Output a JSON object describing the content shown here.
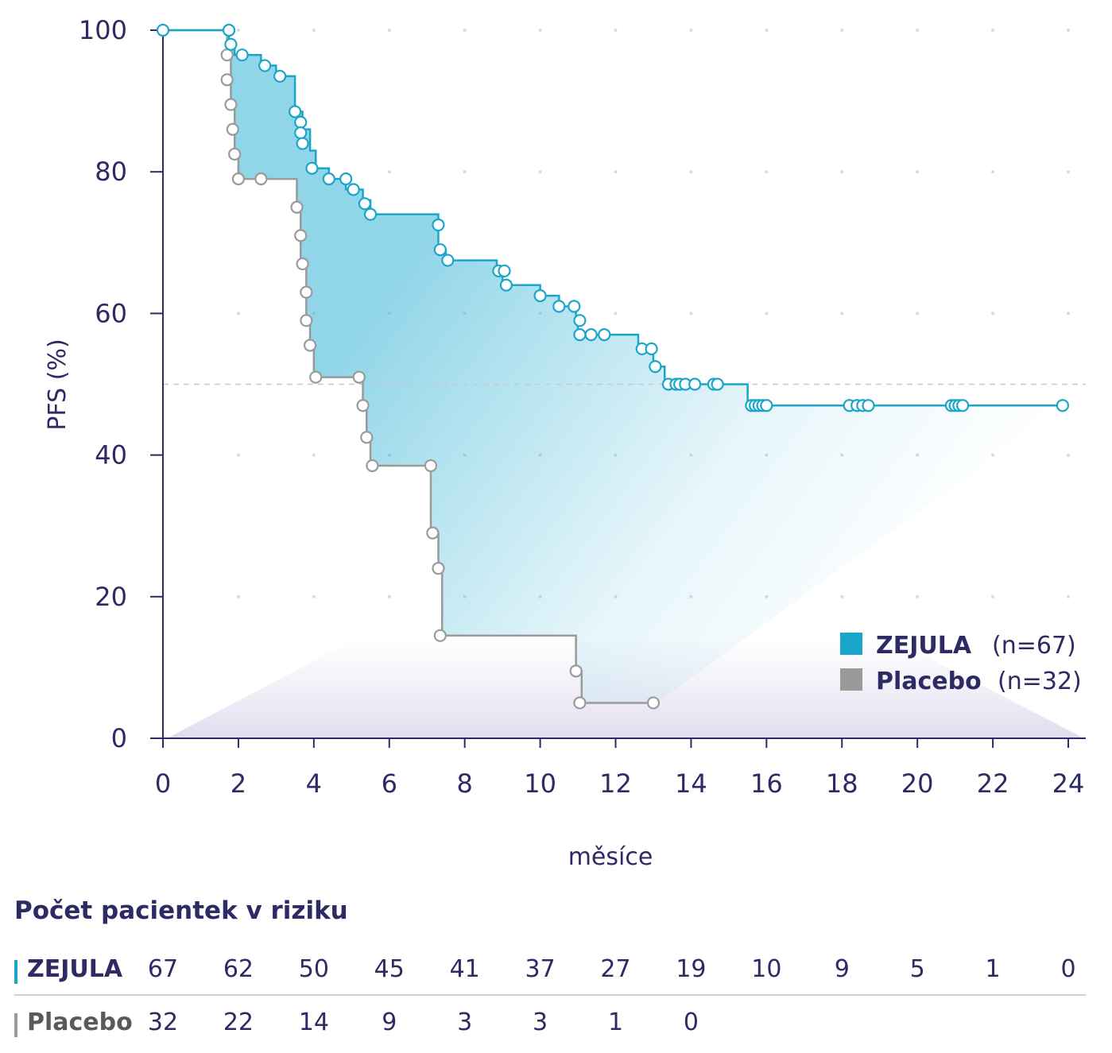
{
  "colors": {
    "zejula": "#1aa6c8",
    "placebo": "#9a9a9a",
    "axis": "#2e2a63",
    "fill": "#36b3d6",
    "median_line": "#c8c8d0"
  },
  "chart_data": {
    "type": "line",
    "title": "",
    "xlabel": "měsíce",
    "ylabel": "PFS (%)",
    "xlim": [
      0,
      24
    ],
    "ylim": [
      0,
      100
    ],
    "x_ticks": [
      0,
      2,
      4,
      6,
      8,
      10,
      12,
      14,
      16,
      18,
      20,
      22,
      24
    ],
    "y_ticks": [
      0,
      20,
      40,
      60,
      80,
      100
    ],
    "reference_line_y": 50,
    "grid": "dots",
    "legend_position": "bottom-right",
    "series": [
      {
        "name": "ZEJULA",
        "n_label": "(n=67)",
        "color": "#1aa6c8",
        "step_points": [
          [
            0,
            100
          ],
          [
            1.75,
            100
          ],
          [
            1.75,
            98
          ],
          [
            1.9,
            98
          ],
          [
            1.9,
            96.5
          ],
          [
            2.6,
            96.5
          ],
          [
            2.6,
            95
          ],
          [
            3.0,
            95
          ],
          [
            3.0,
            93.5
          ],
          [
            3.5,
            93.5
          ],
          [
            3.5,
            88.5
          ],
          [
            3.7,
            88.5
          ],
          [
            3.7,
            86
          ],
          [
            3.9,
            86
          ],
          [
            3.9,
            83
          ],
          [
            4.05,
            83
          ],
          [
            4.05,
            80.5
          ],
          [
            4.4,
            80.5
          ],
          [
            4.4,
            79
          ],
          [
            4.85,
            79
          ],
          [
            4.85,
            77.5
          ],
          [
            5.3,
            77.5
          ],
          [
            5.3,
            76
          ],
          [
            5.5,
            76
          ],
          [
            5.5,
            74
          ],
          [
            7.3,
            74
          ],
          [
            7.3,
            69
          ],
          [
            7.5,
            69
          ],
          [
            7.5,
            67.5
          ],
          [
            8.85,
            67.5
          ],
          [
            8.85,
            66
          ],
          [
            9.0,
            66
          ],
          [
            9.0,
            64
          ],
          [
            10.0,
            64
          ],
          [
            10.0,
            62.5
          ],
          [
            10.5,
            62.5
          ],
          [
            10.5,
            61
          ],
          [
            10.95,
            61
          ],
          [
            10.95,
            59
          ],
          [
            11.0,
            59
          ],
          [
            11.0,
            57
          ],
          [
            12.6,
            57
          ],
          [
            12.6,
            55
          ],
          [
            13.0,
            55
          ],
          [
            13.0,
            52.5
          ],
          [
            13.3,
            52.5
          ],
          [
            13.3,
            50
          ],
          [
            15.5,
            50
          ],
          [
            15.5,
            47
          ],
          [
            23.85,
            47
          ]
        ],
        "censor_points": [
          [
            0,
            100
          ],
          [
            1.75,
            100
          ],
          [
            1.8,
            98
          ],
          [
            2.1,
            96.5
          ],
          [
            2.7,
            95
          ],
          [
            3.1,
            93.5
          ],
          [
            3.5,
            88.5
          ],
          [
            3.65,
            87
          ],
          [
            3.65,
            85.5
          ],
          [
            3.7,
            84
          ],
          [
            3.95,
            80.5
          ],
          [
            4.4,
            79
          ],
          [
            4.85,
            79
          ],
          [
            5.05,
            77.5
          ],
          [
            5.35,
            75.5
          ],
          [
            5.5,
            74
          ],
          [
            7.3,
            72.5
          ],
          [
            7.35,
            69
          ],
          [
            7.55,
            67.5
          ],
          [
            8.9,
            66
          ],
          [
            9.05,
            66
          ],
          [
            9.1,
            64
          ],
          [
            10.0,
            62.5
          ],
          [
            10.5,
            61
          ],
          [
            10.9,
            61
          ],
          [
            11.05,
            59
          ],
          [
            11.05,
            57
          ],
          [
            11.35,
            57
          ],
          [
            11.7,
            57
          ],
          [
            12.7,
            55
          ],
          [
            12.95,
            55
          ],
          [
            13.05,
            52.5
          ],
          [
            13.4,
            50
          ],
          [
            13.6,
            50
          ],
          [
            13.7,
            50
          ],
          [
            13.85,
            50
          ],
          [
            14.1,
            50
          ],
          [
            14.6,
            50
          ],
          [
            14.7,
            50
          ],
          [
            15.6,
            47
          ],
          [
            15.7,
            47
          ],
          [
            15.8,
            47
          ],
          [
            15.9,
            47
          ],
          [
            16.0,
            47
          ],
          [
            18.2,
            47
          ],
          [
            18.4,
            47
          ],
          [
            18.55,
            47
          ],
          [
            18.7,
            47
          ],
          [
            20.9,
            47
          ],
          [
            21.0,
            47
          ],
          [
            21.1,
            47
          ],
          [
            21.2,
            47
          ],
          [
            23.85,
            47
          ]
        ]
      },
      {
        "name": "Placebo",
        "n_label": "(n=32)",
        "color": "#9a9a9a",
        "step_points": [
          [
            0,
            100
          ],
          [
            1.7,
            100
          ],
          [
            1.7,
            96.5
          ],
          [
            1.8,
            96.5
          ],
          [
            1.8,
            89.5
          ],
          [
            1.9,
            89.5
          ],
          [
            1.9,
            82.5
          ],
          [
            2.0,
            82.5
          ],
          [
            2.0,
            79
          ],
          [
            3.55,
            79
          ],
          [
            3.55,
            75
          ],
          [
            3.65,
            75
          ],
          [
            3.65,
            67
          ],
          [
            3.8,
            67
          ],
          [
            3.8,
            59
          ],
          [
            3.9,
            59
          ],
          [
            3.9,
            55.5
          ],
          [
            4.0,
            55.5
          ],
          [
            4.0,
            51
          ],
          [
            5.3,
            51
          ],
          [
            5.3,
            47
          ],
          [
            5.4,
            47
          ],
          [
            5.4,
            42.5
          ],
          [
            5.5,
            42.5
          ],
          [
            5.5,
            38.5
          ],
          [
            7.1,
            38.5
          ],
          [
            7.1,
            29
          ],
          [
            7.3,
            29
          ],
          [
            7.3,
            24
          ],
          [
            7.4,
            24
          ],
          [
            7.4,
            14.5
          ],
          [
            10.95,
            14.5
          ],
          [
            10.95,
            9.5
          ],
          [
            11.1,
            9.5
          ],
          [
            11.1,
            5
          ],
          [
            13.1,
            5
          ]
        ],
        "censor_points": [
          [
            1.7,
            96.5
          ],
          [
            1.7,
            93
          ],
          [
            1.8,
            89.5
          ],
          [
            1.85,
            86
          ],
          [
            1.9,
            82.5
          ],
          [
            2.0,
            79
          ],
          [
            2.6,
            79
          ],
          [
            3.55,
            75
          ],
          [
            3.65,
            71
          ],
          [
            3.7,
            67
          ],
          [
            3.8,
            63
          ],
          [
            3.8,
            59
          ],
          [
            3.9,
            55.5
          ],
          [
            4.05,
            51
          ],
          [
            5.2,
            51
          ],
          [
            5.3,
            47
          ],
          [
            5.4,
            42.5
          ],
          [
            5.55,
            38.5
          ],
          [
            7.1,
            38.5
          ],
          [
            7.15,
            29
          ],
          [
            7.3,
            24
          ],
          [
            7.35,
            14.5
          ],
          [
            10.95,
            9.5
          ],
          [
            11.05,
            5
          ],
          [
            13.0,
            5
          ]
        ]
      }
    ]
  },
  "risk_table": {
    "title": "Počet pacientek v riziku",
    "rows": [
      {
        "label": "ZEJULA",
        "values": [
          "67",
          "62",
          "50",
          "45",
          "41",
          "37",
          "27",
          "19",
          "10",
          "9",
          "5",
          "1",
          "0"
        ]
      },
      {
        "label": "Placebo",
        "values": [
          "32",
          "22",
          "14",
          "9",
          "3",
          "3",
          "1",
          "0"
        ]
      }
    ]
  }
}
